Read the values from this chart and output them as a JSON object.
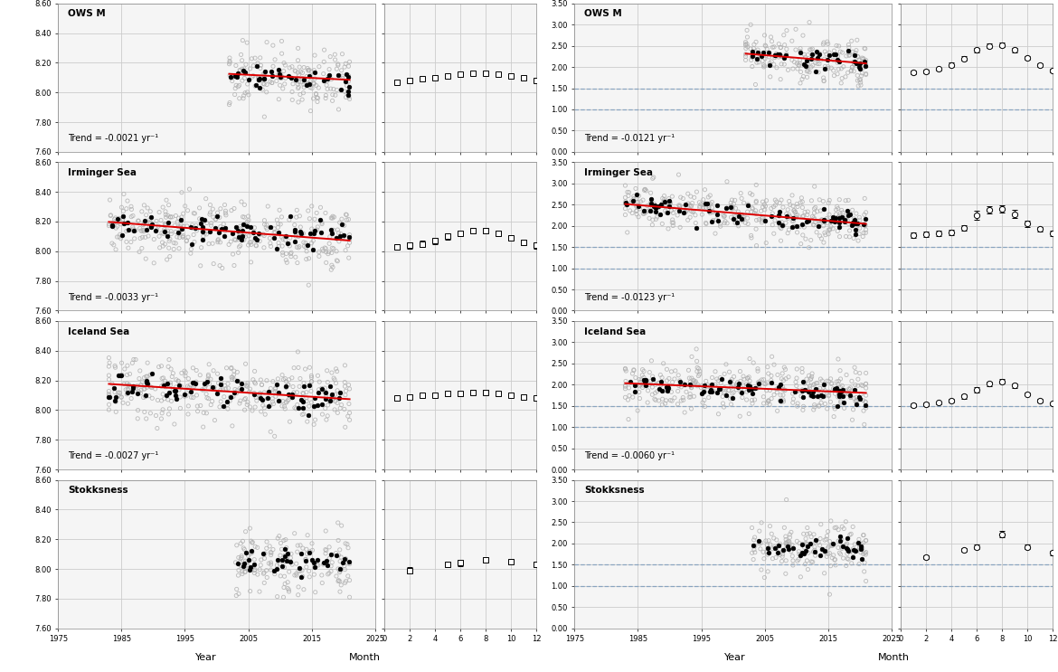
{
  "stations": [
    "OWS M",
    "Irminger Sea",
    "Iceland Sea",
    "Stokksness"
  ],
  "pH": {
    "trends": [
      "Trend = -0.0021 yr⁻¹",
      "Trend = -0.0033 yr⁻¹",
      "Trend = -0.0027 yr⁻¹",
      null
    ],
    "ylim": [
      7.6,
      8.6
    ],
    "yticks": [
      7.6,
      7.8,
      8.0,
      8.2,
      8.4,
      8.6
    ],
    "time_series": [
      {
        "year_start": 2002,
        "year_end": 2021,
        "mean": 8.105,
        "slope": -0.0021
      },
      {
        "year_start": 1983,
        "year_end": 2021,
        "mean": 8.135,
        "slope": -0.0033
      },
      {
        "year_start": 1983,
        "year_end": 2021,
        "mean": 8.125,
        "slope": -0.0027
      },
      {
        "year_start": 2003,
        "year_end": 2021,
        "mean": 8.04,
        "slope": 0.0
      }
    ],
    "seasonal_data": [
      {
        "months": [
          1,
          2,
          3,
          4,
          5,
          6,
          7,
          8,
          9,
          10,
          11,
          12
        ],
        "means": [
          8.07,
          8.08,
          8.09,
          8.1,
          8.11,
          8.12,
          8.13,
          8.13,
          8.12,
          8.11,
          8.1,
          8.08
        ],
        "stds": [
          0.01,
          0.01,
          0.01,
          0.01,
          0.01,
          0.01,
          0.01,
          0.01,
          0.01,
          0.01,
          0.01,
          0.01
        ]
      },
      {
        "months": [
          1,
          2,
          3,
          4,
          5,
          6,
          7,
          8,
          9,
          10,
          11,
          12
        ],
        "means": [
          8.03,
          8.04,
          8.05,
          8.07,
          8.1,
          8.12,
          8.14,
          8.14,
          8.12,
          8.09,
          8.06,
          8.04
        ],
        "stds": [
          0.02,
          0.02,
          0.02,
          0.02,
          0.02,
          0.02,
          0.02,
          0.02,
          0.02,
          0.02,
          0.02,
          0.02
        ]
      },
      {
        "months": [
          1,
          2,
          3,
          4,
          5,
          6,
          7,
          8,
          9,
          10,
          11,
          12
        ],
        "means": [
          8.08,
          8.09,
          8.1,
          8.1,
          8.11,
          8.11,
          8.12,
          8.12,
          8.11,
          8.1,
          8.09,
          8.08
        ],
        "stds": [
          0.015,
          0.015,
          0.015,
          0.015,
          0.015,
          0.015,
          0.015,
          0.015,
          0.015,
          0.015,
          0.015,
          0.015
        ]
      },
      {
        "months": [
          2,
          5,
          6,
          8,
          10,
          12
        ],
        "means": [
          7.99,
          8.03,
          8.04,
          8.06,
          8.05,
          8.03
        ],
        "stds": [
          0.02,
          0.02,
          0.02,
          0.02,
          0.02,
          0.02
        ]
      }
    ]
  },
  "omega": {
    "trends": [
      "Trend = -0.0121 yr⁻¹",
      "Trend = -0.0123 yr⁻¹",
      "Trend = -0.0060 yr⁻¹",
      null
    ],
    "ylim": [
      0.0,
      3.5
    ],
    "yticks": [
      0.0,
      0.5,
      1.0,
      1.5,
      2.0,
      2.5,
      3.0,
      3.5
    ],
    "hlines": [
      1.0,
      1.5
    ],
    "time_series": [
      {
        "year_start": 2002,
        "year_end": 2021,
        "mean": 2.2,
        "slope": -0.0121
      },
      {
        "year_start": 1983,
        "year_end": 2021,
        "mean": 2.28,
        "slope": -0.0123
      },
      {
        "year_start": 1983,
        "year_end": 2021,
        "mean": 1.92,
        "slope": -0.006
      },
      {
        "year_start": 2003,
        "year_end": 2021,
        "mean": 1.88,
        "slope": 0.0
      }
    ],
    "seasonal_data": [
      {
        "months": [
          1,
          2,
          3,
          4,
          5,
          6,
          7,
          8,
          9,
          10,
          11,
          12
        ],
        "means": [
          1.88,
          1.9,
          1.95,
          2.05,
          2.2,
          2.4,
          2.5,
          2.52,
          2.4,
          2.22,
          2.05,
          1.92
        ],
        "stds": [
          0.04,
          0.04,
          0.04,
          0.05,
          0.05,
          0.05,
          0.05,
          0.05,
          0.05,
          0.04,
          0.04,
          0.04
        ]
      },
      {
        "months": [
          1,
          2,
          3,
          4,
          5,
          6,
          7,
          8,
          9,
          10,
          11,
          12
        ],
        "means": [
          1.78,
          1.8,
          1.82,
          1.85,
          1.95,
          2.25,
          2.38,
          2.4,
          2.28,
          2.05,
          1.92,
          1.82
        ],
        "stds": [
          0.06,
          0.06,
          0.06,
          0.06,
          0.07,
          0.1,
          0.09,
          0.09,
          0.09,
          0.07,
          0.06,
          0.06
        ]
      },
      {
        "months": [
          1,
          2,
          3,
          4,
          5,
          6,
          7,
          8,
          9,
          10,
          11,
          12
        ],
        "means": [
          1.52,
          1.54,
          1.57,
          1.62,
          1.72,
          1.88,
          2.02,
          2.08,
          1.98,
          1.78,
          1.62,
          1.55
        ],
        "stds": [
          0.04,
          0.04,
          0.04,
          0.04,
          0.05,
          0.06,
          0.06,
          0.06,
          0.05,
          0.04,
          0.04,
          0.04
        ]
      },
      {
        "months": [
          2,
          5,
          6,
          8,
          10,
          12
        ],
        "means": [
          1.68,
          1.85,
          1.92,
          2.22,
          1.92,
          1.78
        ],
        "stds": [
          0.05,
          0.05,
          0.05,
          0.08,
          0.05,
          0.05
        ]
      }
    ]
  },
  "xlim_time": [
    1975,
    2025
  ],
  "xticks_time": [
    1975,
    1985,
    1995,
    2005,
    2015,
    2025
  ],
  "xlim_seasonal": [
    0,
    12
  ],
  "xticks_seasonal": [
    0,
    2,
    4,
    6,
    8,
    10,
    12
  ],
  "panel_bg": "#f5f5f5",
  "grid_color": "#cccccc",
  "scatter_gray_color": "#b0b0b0",
  "trend_color": "#dd0000",
  "hline_color": "#7799bb",
  "hline_solid_color": "#88aacc"
}
